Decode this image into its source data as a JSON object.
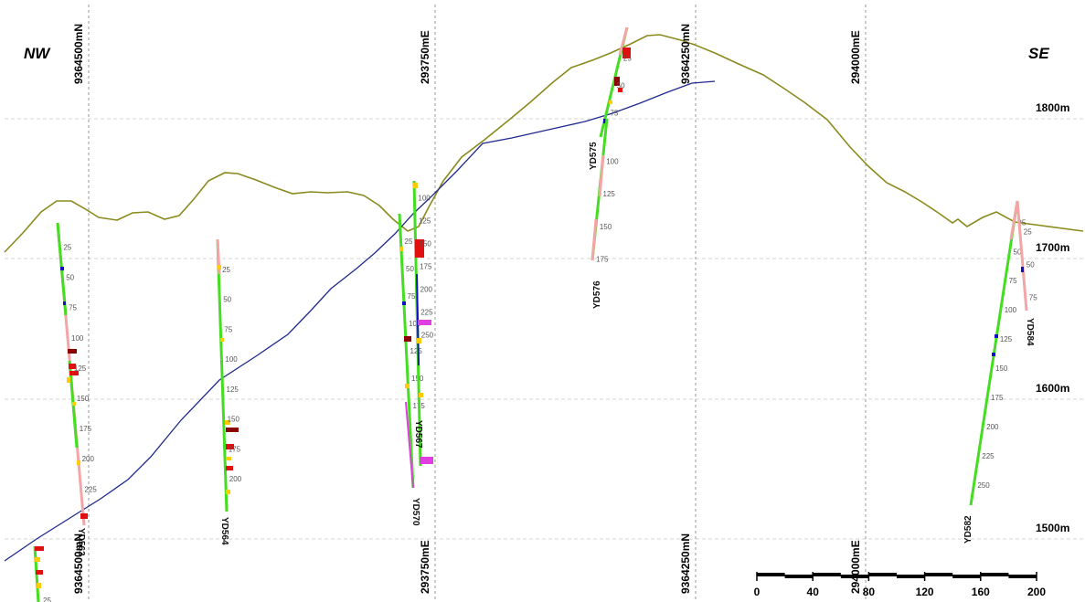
{
  "direction": {
    "left": "NW",
    "right": "SE"
  },
  "grid_lines": [
    {
      "label": "9364500mN"
    },
    {
      "label": "293750mE"
    },
    {
      "label": "9364250mN"
    },
    {
      "label": "294000mE"
    }
  ],
  "elevations": [
    "1800m",
    "1700m",
    "1600m",
    "1500m"
  ],
  "holes": [
    {
      "id": "YD563",
      "depths": [
        "25",
        "50",
        "75",
        "100",
        "125",
        "150",
        "175",
        "200",
        "225"
      ]
    },
    {
      "id": "YD564",
      "depths": [
        "25",
        "50",
        "75",
        "100",
        "125",
        "150",
        "175",
        "200"
      ]
    },
    {
      "id": "YD567",
      "depths": [
        "100",
        "125",
        "150",
        "175",
        "200",
        "225",
        "250"
      ]
    },
    {
      "id": "YD570",
      "depths": [
        "25",
        "50",
        "75",
        "100",
        "125",
        "150",
        "175"
      ]
    },
    {
      "id": "YD575",
      "depths": [
        "25",
        "50",
        "75"
      ]
    },
    {
      "id": "YD576",
      "depths": [
        "100",
        "125",
        "150",
        "175"
      ]
    },
    {
      "id": "YD582",
      "depths": [
        "25",
        "50",
        "75",
        "100",
        "125",
        "150",
        "175",
        "200",
        "225",
        "250"
      ]
    },
    {
      "id": "YD584",
      "depths": [
        "25",
        "50",
        "75"
      ]
    }
  ],
  "bottom_left_depth": "25",
  "scale_bar": {
    "ticks": [
      "0",
      "40",
      "80",
      "120",
      "160",
      "200"
    ]
  },
  "colors": {
    "topography": "#8a8a1f",
    "contact": "#1f2a8c",
    "grid": "#9a9a9a",
    "elev_grid": "#d4d4d4",
    "trace_green": "#44dd22",
    "trace_pink": "#f4a5a5",
    "assay_red": "#e01010",
    "assay_darkred": "#8b0000",
    "assay_yellow": "#ffcc00",
    "assay_orange": "#ff8800",
    "assay_magenta": "#e03ee0",
    "assay_blue": "#1010c0"
  }
}
